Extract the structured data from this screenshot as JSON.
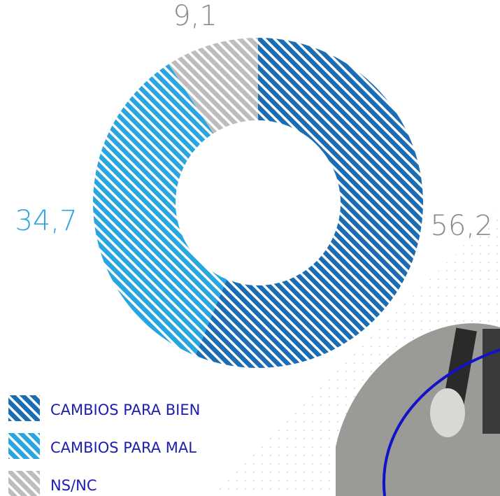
{
  "chart_data": {
    "type": "donut",
    "categories": [
      "CAMBIOS PARA BIEN",
      "CAMBIOS PARA MAL",
      "NS/NC"
    ],
    "values": [
      56.2,
      34.7,
      9.1
    ],
    "value_labels": [
      "56,2",
      "34,7",
      "9,1"
    ],
    "colors": [
      "#1b6db3",
      "#29a6e0",
      "#bdbdbd"
    ]
  }
}
